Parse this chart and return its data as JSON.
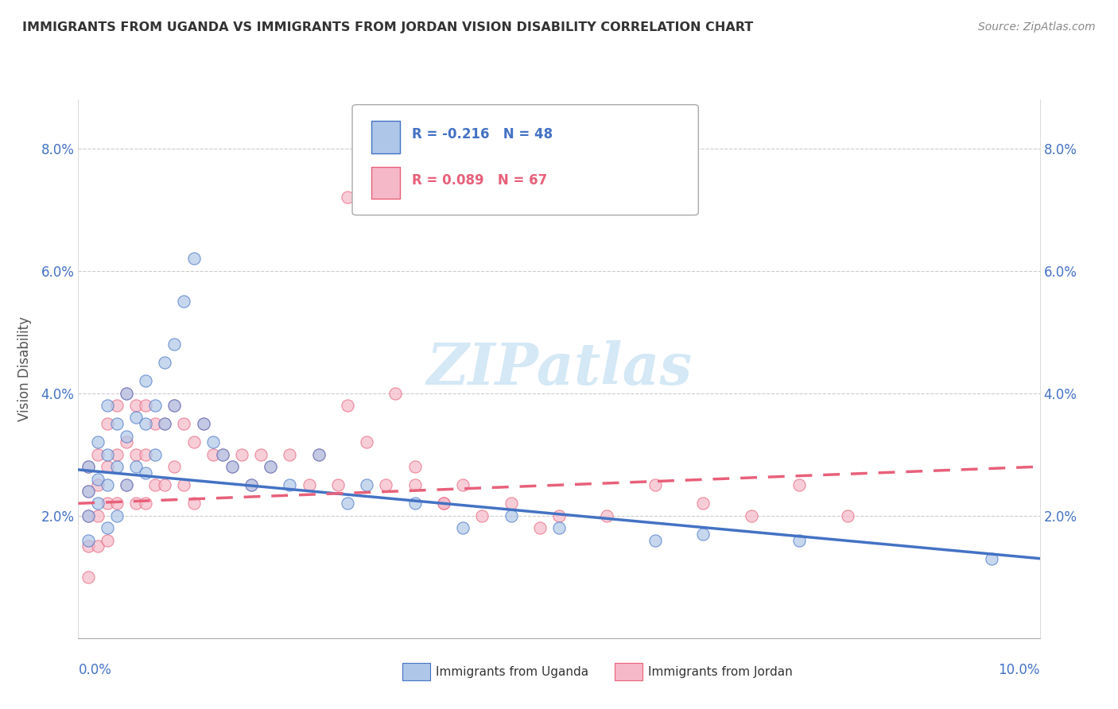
{
  "title": "IMMIGRANTS FROM UGANDA VS IMMIGRANTS FROM JORDAN VISION DISABILITY CORRELATION CHART",
  "source": "Source: ZipAtlas.com",
  "ylabel": "Vision Disability",
  "xlim": [
    0.0,
    0.1
  ],
  "ylim": [
    0.0,
    0.088
  ],
  "yticks": [
    0.02,
    0.04,
    0.06,
    0.08
  ],
  "ytick_labels": [
    "2.0%",
    "4.0%",
    "6.0%",
    "8.0%"
  ],
  "xtick_left": "0.0%",
  "xtick_right": "10.0%",
  "legend_r1": "R = -0.216",
  "legend_n1": "N = 48",
  "legend_r2": "R = 0.089",
  "legend_n2": "N = 67",
  "color_uganda": "#aec6e8",
  "color_jordan": "#f5b8c8",
  "color_uganda_line": "#4472c4",
  "color_jordan_line": "#e8607a",
  "color_tick": "#4472c4",
  "color_title": "#333333",
  "watermark_text": "ZIPatlas",
  "watermark_color": "#d4e8f5",
  "legend_label_uganda": "Immigrants from Uganda",
  "legend_label_jordan": "Immigrants from Jordan",
  "uganda_x": [
    0.001,
    0.001,
    0.001,
    0.001,
    0.002,
    0.002,
    0.002,
    0.003,
    0.003,
    0.003,
    0.003,
    0.004,
    0.004,
    0.004,
    0.005,
    0.005,
    0.005,
    0.006,
    0.006,
    0.007,
    0.007,
    0.007,
    0.008,
    0.008,
    0.009,
    0.009,
    0.01,
    0.01,
    0.011,
    0.012,
    0.013,
    0.014,
    0.015,
    0.016,
    0.018,
    0.02,
    0.022,
    0.025,
    0.028,
    0.03,
    0.035,
    0.04,
    0.045,
    0.05,
    0.06,
    0.065,
    0.075,
    0.095
  ],
  "uganda_y": [
    0.028,
    0.024,
    0.02,
    0.016,
    0.032,
    0.026,
    0.022,
    0.038,
    0.03,
    0.025,
    0.018,
    0.035,
    0.028,
    0.02,
    0.04,
    0.033,
    0.025,
    0.036,
    0.028,
    0.042,
    0.035,
    0.027,
    0.038,
    0.03,
    0.045,
    0.035,
    0.048,
    0.038,
    0.055,
    0.062,
    0.035,
    0.032,
    0.03,
    0.028,
    0.025,
    0.028,
    0.025,
    0.03,
    0.022,
    0.025,
    0.022,
    0.018,
    0.02,
    0.018,
    0.016,
    0.017,
    0.016,
    0.013
  ],
  "jordan_x": [
    0.001,
    0.001,
    0.001,
    0.001,
    0.001,
    0.002,
    0.002,
    0.002,
    0.002,
    0.003,
    0.003,
    0.003,
    0.003,
    0.004,
    0.004,
    0.004,
    0.005,
    0.005,
    0.005,
    0.006,
    0.006,
    0.006,
    0.007,
    0.007,
    0.007,
    0.008,
    0.008,
    0.009,
    0.009,
    0.01,
    0.01,
    0.011,
    0.011,
    0.012,
    0.012,
    0.013,
    0.014,
    0.015,
    0.016,
    0.017,
    0.018,
    0.019,
    0.02,
    0.022,
    0.024,
    0.025,
    0.027,
    0.028,
    0.03,
    0.032,
    0.033,
    0.035,
    0.038,
    0.04,
    0.042,
    0.045,
    0.048,
    0.05,
    0.055,
    0.06,
    0.065,
    0.07,
    0.075,
    0.08,
    0.035,
    0.038,
    0.028
  ],
  "jordan_y": [
    0.028,
    0.024,
    0.02,
    0.015,
    0.01,
    0.03,
    0.025,
    0.02,
    0.015,
    0.035,
    0.028,
    0.022,
    0.016,
    0.038,
    0.03,
    0.022,
    0.04,
    0.032,
    0.025,
    0.038,
    0.03,
    0.022,
    0.038,
    0.03,
    0.022,
    0.035,
    0.025,
    0.035,
    0.025,
    0.038,
    0.028,
    0.035,
    0.025,
    0.032,
    0.022,
    0.035,
    0.03,
    0.03,
    0.028,
    0.03,
    0.025,
    0.03,
    0.028,
    0.03,
    0.025,
    0.03,
    0.025,
    0.072,
    0.032,
    0.025,
    0.04,
    0.028,
    0.022,
    0.025,
    0.02,
    0.022,
    0.018,
    0.02,
    0.02,
    0.025,
    0.022,
    0.02,
    0.025,
    0.02,
    0.025,
    0.022,
    0.038
  ],
  "uganda_trend_x0": 0.0,
  "uganda_trend_x1": 0.1,
  "uganda_trend_y0": 0.0275,
  "uganda_trend_y1": 0.013,
  "jordan_trend_x0": 0.0,
  "jordan_trend_x1": 0.1,
  "jordan_trend_y0": 0.022,
  "jordan_trend_y1": 0.028
}
